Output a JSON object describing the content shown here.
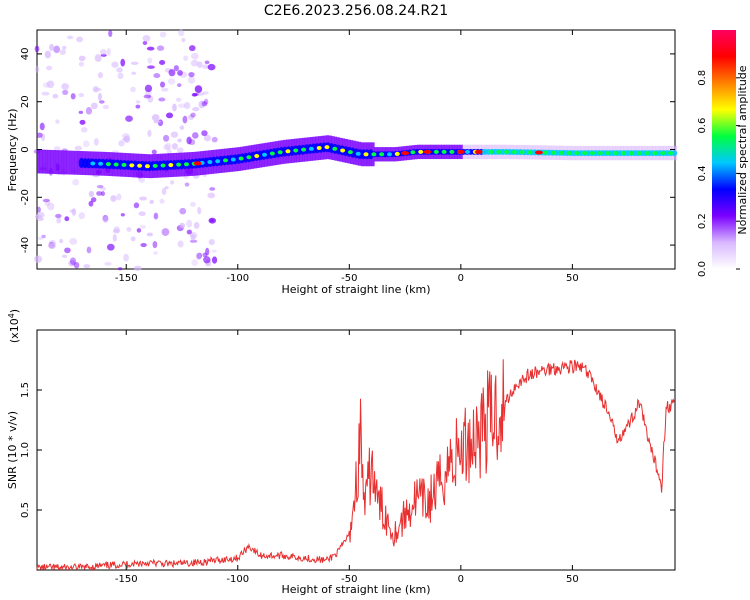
{
  "title": "C2E6.2023.256.08.24.R21",
  "chart_data": [
    {
      "type": "heatmap",
      "xlabel": "Height of straight line (km)",
      "ylabel": "Frequency (Hz)",
      "xlim": [
        -190,
        96
      ],
      "ylim": [
        -50,
        50
      ],
      "x_ticks": [
        -150,
        -100,
        -50,
        0,
        50
      ],
      "y_ticks": [
        40,
        20,
        0,
        -20,
        -40
      ],
      "colorbar": {
        "label": "Normalized spectral amplitude",
        "range": [
          0,
          1
        ],
        "ticks": [
          "0.0",
          "0.2",
          "0.4",
          "0.6",
          "0.8"
        ],
        "colors": [
          "#ffffff",
          "#d8b8ff",
          "#7a00ff",
          "#0000ff",
          "#00c8ff",
          "#00ff40",
          "#ffff00",
          "#ff8000",
          "#ff0000",
          "#ff0060"
        ]
      },
      "ridge": [
        {
          "x": -190,
          "y": -5
        },
        {
          "x": -160,
          "y": -6
        },
        {
          "x": -140,
          "y": -7
        },
        {
          "x": -120,
          "y": -6
        },
        {
          "x": -100,
          "y": -4
        },
        {
          "x": -80,
          "y": -1
        },
        {
          "x": -60,
          "y": 1
        },
        {
          "x": -45,
          "y": -2
        },
        {
          "x": -30,
          "y": -2
        },
        {
          "x": -20,
          "y": -1
        },
        {
          "x": 0,
          "y": -1
        },
        {
          "x": 20,
          "y": -1
        },
        {
          "x": 50,
          "y": -1.5
        },
        {
          "x": 96,
          "y": -1.5
        }
      ]
    },
    {
      "type": "line",
      "xlabel": "Height of straight line (km)",
      "ylabel": "SNR (10 * v/v)",
      "y_scale_label": "(x10",
      "y_scale_exp": "4",
      "y_scale_close": ")",
      "xlim": [
        -190,
        96
      ],
      "ylim": [
        0,
        2.0
      ],
      "x_ticks": [
        -150,
        -100,
        -50,
        0,
        50
      ],
      "y_ticks": [
        "0.5",
        "1.0",
        "1.5"
      ],
      "color": "#e83030",
      "x": [
        -190,
        -170,
        -150,
        -140,
        -130,
        -120,
        -110,
        -100,
        -95,
        -90,
        -80,
        -70,
        -60,
        -55,
        -50,
        -47,
        -45,
        -43,
        -40,
        -38,
        -35,
        -30,
        -25,
        -20,
        -15,
        -10,
        -5,
        0,
        5,
        10,
        15,
        20,
        25,
        30,
        40,
        50,
        55,
        60,
        65,
        70,
        75,
        80,
        85,
        88,
        90,
        92,
        96
      ],
      "y": [
        0.02,
        0.02,
        0.05,
        0.06,
        0.05,
        0.06,
        0.08,
        0.1,
        0.2,
        0.12,
        0.12,
        0.1,
        0.08,
        0.15,
        0.3,
        0.7,
        1.1,
        0.5,
        0.9,
        0.6,
        0.5,
        0.3,
        0.45,
        0.6,
        0.55,
        0.7,
        0.9,
        1.0,
        1.1,
        1.2,
        1.3,
        1.4,
        1.55,
        1.62,
        1.68,
        1.7,
        1.68,
        1.55,
        1.35,
        1.1,
        1.2,
        1.4,
        1.0,
        0.85,
        0.7,
        1.35,
        1.4
      ]
    }
  ]
}
